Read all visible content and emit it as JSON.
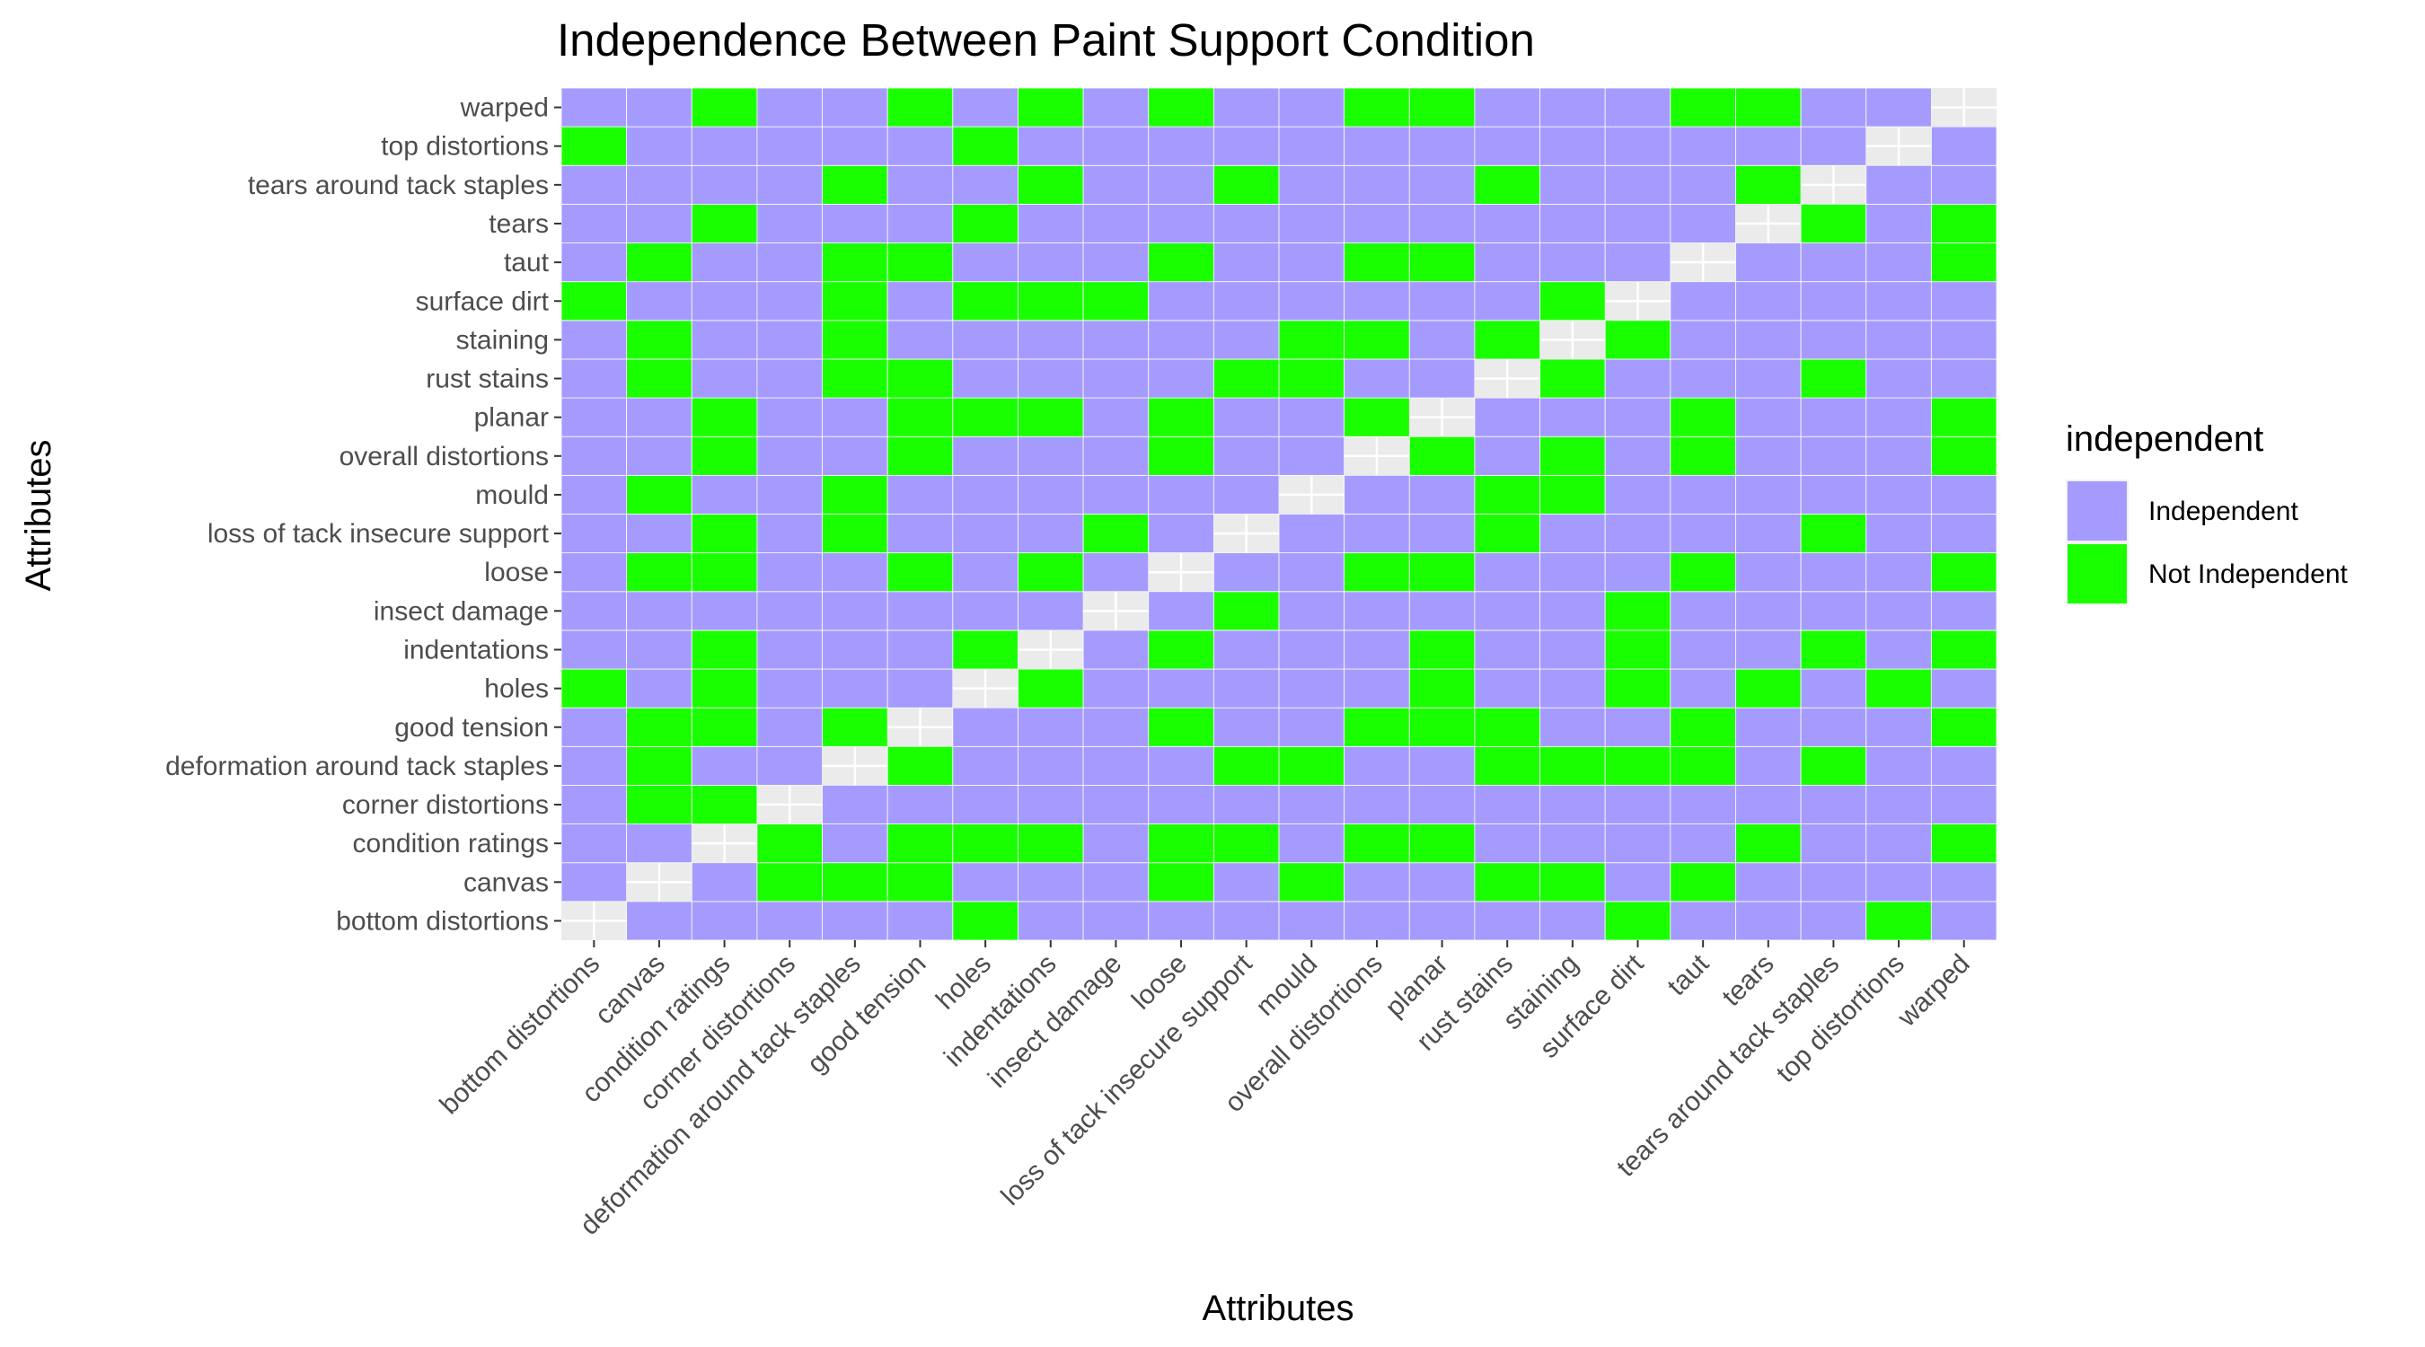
{
  "chart_data": {
    "type": "heatmap",
    "title": "Independence Between Paint Support Condition",
    "xlabel": "Attributes",
    "ylabel": "Attributes",
    "categories": [
      "bottom distortions",
      "canvas",
      "condition ratings",
      "corner distortions",
      "deformation around tack staples",
      "good tension",
      "holes",
      "indentations",
      "insect damage",
      "loose",
      "loss of tack insecure support",
      "mould",
      "overall distortions",
      "planar",
      "rust stains",
      "staining",
      "surface dirt",
      "taut",
      "tears",
      "tears around tack staples",
      "top distortions",
      "warped"
    ],
    "legend": {
      "title": "independent",
      "position": "right",
      "entries": [
        {
          "label": "Independent",
          "color": "#a59bff"
        },
        {
          "label": "Not Independent",
          "color": "#1aff00"
        }
      ]
    },
    "missing_color": "#ebebeb",
    "grid": true,
    "cell_legend": "0 = Independent, 1 = Not Independent, null = diagonal (no value)",
    "matrix": [
      [
        null,
        0,
        0,
        0,
        0,
        0,
        1,
        0,
        0,
        0,
        0,
        0,
        0,
        0,
        0,
        0,
        1,
        0,
        0,
        0,
        1,
        0
      ],
      [
        0,
        null,
        0,
        1,
        1,
        1,
        0,
        0,
        0,
        1,
        0,
        1,
        0,
        0,
        1,
        1,
        0,
        1,
        0,
        0,
        0,
        0
      ],
      [
        0,
        0,
        null,
        1,
        0,
        1,
        1,
        1,
        0,
        1,
        1,
        0,
        1,
        1,
        0,
        0,
        0,
        0,
        1,
        0,
        0,
        1
      ],
      [
        0,
        1,
        1,
        null,
        0,
        0,
        0,
        0,
        0,
        0,
        0,
        0,
        0,
        0,
        0,
        0,
        0,
        0,
        0,
        0,
        0,
        0
      ],
      [
        0,
        1,
        0,
        0,
        null,
        1,
        0,
        0,
        0,
        0,
        1,
        1,
        0,
        0,
        1,
        1,
        1,
        1,
        0,
        1,
        0,
        0
      ],
      [
        0,
        1,
        1,
        0,
        1,
        null,
        0,
        0,
        0,
        1,
        0,
        0,
        1,
        1,
        1,
        0,
        0,
        1,
        0,
        0,
        0,
        1
      ],
      [
        1,
        0,
        1,
        0,
        0,
        0,
        null,
        1,
        0,
        0,
        0,
        0,
        0,
        1,
        0,
        0,
        1,
        0,
        1,
        0,
        1,
        0
      ],
      [
        0,
        0,
        1,
        0,
        0,
        0,
        1,
        null,
        0,
        1,
        0,
        0,
        0,
        1,
        0,
        0,
        1,
        0,
        0,
        1,
        0,
        1
      ],
      [
        0,
        0,
        0,
        0,
        0,
        0,
        0,
        0,
        null,
        0,
        1,
        0,
        0,
        0,
        0,
        0,
        1,
        0,
        0,
        0,
        0,
        0
      ],
      [
        0,
        1,
        1,
        0,
        0,
        1,
        0,
        1,
        0,
        null,
        0,
        0,
        1,
        1,
        0,
        0,
        0,
        1,
        0,
        0,
        0,
        1
      ],
      [
        0,
        0,
        1,
        0,
        1,
        0,
        0,
        0,
        1,
        0,
        null,
        0,
        0,
        0,
        1,
        0,
        0,
        0,
        0,
        1,
        0,
        0
      ],
      [
        0,
        1,
        0,
        0,
        1,
        0,
        0,
        0,
        0,
        0,
        0,
        null,
        0,
        0,
        1,
        1,
        0,
        0,
        0,
        0,
        0,
        0
      ],
      [
        0,
        0,
        1,
        0,
        0,
        1,
        0,
        0,
        0,
        1,
        0,
        0,
        null,
        1,
        0,
        1,
        0,
        1,
        0,
        0,
        0,
        1
      ],
      [
        0,
        0,
        1,
        0,
        0,
        1,
        1,
        1,
        0,
        1,
        0,
        0,
        1,
        null,
        0,
        0,
        0,
        1,
        0,
        0,
        0,
        1
      ],
      [
        0,
        1,
        0,
        0,
        1,
        1,
        0,
        0,
        0,
        0,
        1,
        1,
        0,
        0,
        null,
        1,
        0,
        0,
        0,
        1,
        0,
        0
      ],
      [
        0,
        1,
        0,
        0,
        1,
        0,
        0,
        0,
        0,
        0,
        0,
        1,
        1,
        0,
        1,
        null,
        1,
        0,
        0,
        0,
        0,
        0
      ],
      [
        1,
        0,
        0,
        0,
        1,
        0,
        1,
        1,
        1,
        0,
        0,
        0,
        0,
        0,
        0,
        1,
        null,
        0,
        0,
        0,
        0,
        0
      ],
      [
        0,
        1,
        0,
        0,
        1,
        1,
        0,
        0,
        0,
        1,
        0,
        0,
        1,
        1,
        0,
        0,
        0,
        null,
        0,
        0,
        0,
        1
      ],
      [
        0,
        0,
        1,
        0,
        0,
        0,
        1,
        0,
        0,
        0,
        0,
        0,
        0,
        0,
        0,
        0,
        0,
        0,
        null,
        1,
        0,
        1
      ],
      [
        0,
        0,
        0,
        0,
        1,
        0,
        0,
        1,
        0,
        0,
        1,
        0,
        0,
        0,
        1,
        0,
        0,
        0,
        1,
        null,
        0,
        0
      ],
      [
        1,
        0,
        0,
        0,
        0,
        0,
        1,
        0,
        0,
        0,
        0,
        0,
        0,
        0,
        0,
        0,
        0,
        0,
        0,
        0,
        null,
        0
      ],
      [
        0,
        0,
        1,
        0,
        0,
        1,
        0,
        1,
        0,
        1,
        0,
        0,
        1,
        1,
        0,
        0,
        0,
        1,
        1,
        0,
        0,
        null
      ]
    ]
  }
}
